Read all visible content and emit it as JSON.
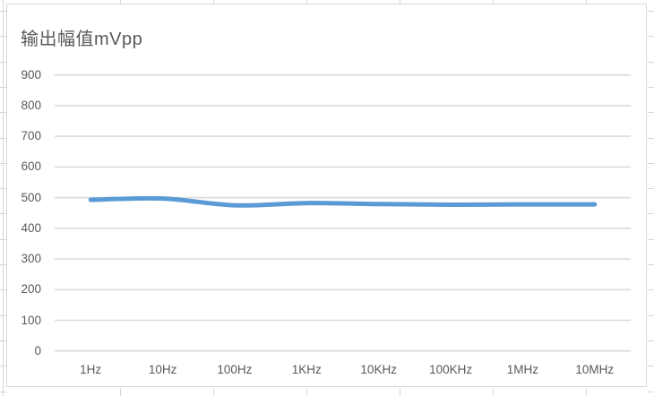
{
  "chart_data": {
    "type": "line",
    "title": "输出幅值mVpp",
    "categories": [
      "1Hz",
      "10Hz",
      "100Hz",
      "1KHz",
      "10KHz",
      "100KHz",
      "1MHz",
      "10MHz"
    ],
    "series": [
      {
        "name": "输出幅值mVpp",
        "values": [
          493,
          497,
          475,
          482,
          479,
          477,
          478,
          478
        ]
      }
    ],
    "xlabel": "",
    "ylabel": "",
    "ylim": [
      0,
      900
    ],
    "yticks": [
      0,
      100,
      200,
      300,
      400,
      500,
      600,
      700,
      800,
      900
    ],
    "grid": "horizontal",
    "legend": "none",
    "smoothed": true,
    "colors": {
      "line": "#5B9BD5",
      "gridline": "#D9D9D9",
      "text": "#595959",
      "chart_border": "#D9D9D9",
      "sheet_gridline": "#D6D6D6",
      "background": "#FFFFFF"
    }
  }
}
